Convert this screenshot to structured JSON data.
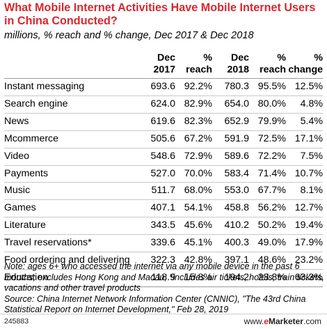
{
  "chart_data": {
    "type": "table",
    "title": "What Mobile Internet Activities Have Mobile Internet Users in China Conducted?",
    "subtitle": "millions, % reach and % change, Dec 2017 & Dec 2018",
    "columns": [
      {
        "top": "",
        "bottom": ""
      },
      {
        "top": "Dec",
        "bottom": "2017"
      },
      {
        "top": "%",
        "bottom": "reach"
      },
      {
        "top": "Dec",
        "bottom": "2018"
      },
      {
        "top": "%",
        "bottom": "reach"
      },
      {
        "top": "%",
        "bottom": "change"
      }
    ],
    "rows": [
      {
        "label": "Instant messaging",
        "dec2017": "693.6",
        "reach2017": "92.2%",
        "dec2018": "780.3",
        "reach2018": "95.5%",
        "change": "12.5%"
      },
      {
        "label": "Search engine",
        "dec2017": "624.0",
        "reach2017": "82.9%",
        "dec2018": "654.0",
        "reach2018": "80.0%",
        "change": "4.8%"
      },
      {
        "label": "News",
        "dec2017": "619.6",
        "reach2017": "82.3%",
        "dec2018": "652.9",
        "reach2018": "79.9%",
        "change": "5.4%"
      },
      {
        "label": "Mcommerce",
        "dec2017": "505.6",
        "reach2017": "67.2%",
        "dec2018": "591.9",
        "reach2018": "72.5%",
        "change": "17.1%"
      },
      {
        "label": "Video",
        "dec2017": "548.6",
        "reach2017": "72.9%",
        "dec2018": "589.6",
        "reach2018": "72.2%",
        "change": "7.5%"
      },
      {
        "label": "Payments",
        "dec2017": "527.0",
        "reach2017": "70.0%",
        "dec2018": "583.4",
        "reach2018": "71.4%",
        "change": "10.7%"
      },
      {
        "label": "Music",
        "dec2017": "511.7",
        "reach2017": "68.0%",
        "dec2018": "553.0",
        "reach2018": "67.7%",
        "change": "8.1%"
      },
      {
        "label": "Games",
        "dec2017": "407.1",
        "reach2017": "54.1%",
        "dec2018": "458.8",
        "reach2018": "56.2%",
        "change": "12.7%"
      },
      {
        "label": "Literature",
        "dec2017": "343.5",
        "reach2017": "45.6%",
        "dec2018": "410.2",
        "reach2018": "50.2%",
        "change": "19.4%"
      },
      {
        "label": "Travel reservations*",
        "dec2017": "339.6",
        "reach2017": "45.1%",
        "dec2018": "400.3",
        "reach2018": "49.0%",
        "change": "17.9%"
      },
      {
        "label": "Food ordering and delivering",
        "dec2017": "322.3",
        "reach2017": "42.8%",
        "dec2018": "397.1",
        "reach2018": "48.6%",
        "change": "23.2%"
      },
      {
        "label": "Education",
        "dec2017": "118.9",
        "reach2017": "15.8%",
        "dec2018": "194.2",
        "reach2018": "23.8%",
        "change": "63.3%"
      }
    ],
    "note": "Note: ages 6+ who accessed the internet via any mobile device in the past 6 months; excludes Hong Kong and Macau; *includes air tickets, hotels, train tickets, vacations and other travel products",
    "source": "Source: China Internet Network Information Center (CNNIC), \"The 43rd China Statistical Report on Internet Development,\" Feb 28, 2019"
  },
  "footer": {
    "chart_id": "245883",
    "brand_prefix": "www.",
    "brand_e": "e",
    "brand_rest": "Marketer",
    "brand_suffix": ".com"
  },
  "colors": {
    "title": "#d7282f",
    "rule": "#c8c8c8"
  }
}
